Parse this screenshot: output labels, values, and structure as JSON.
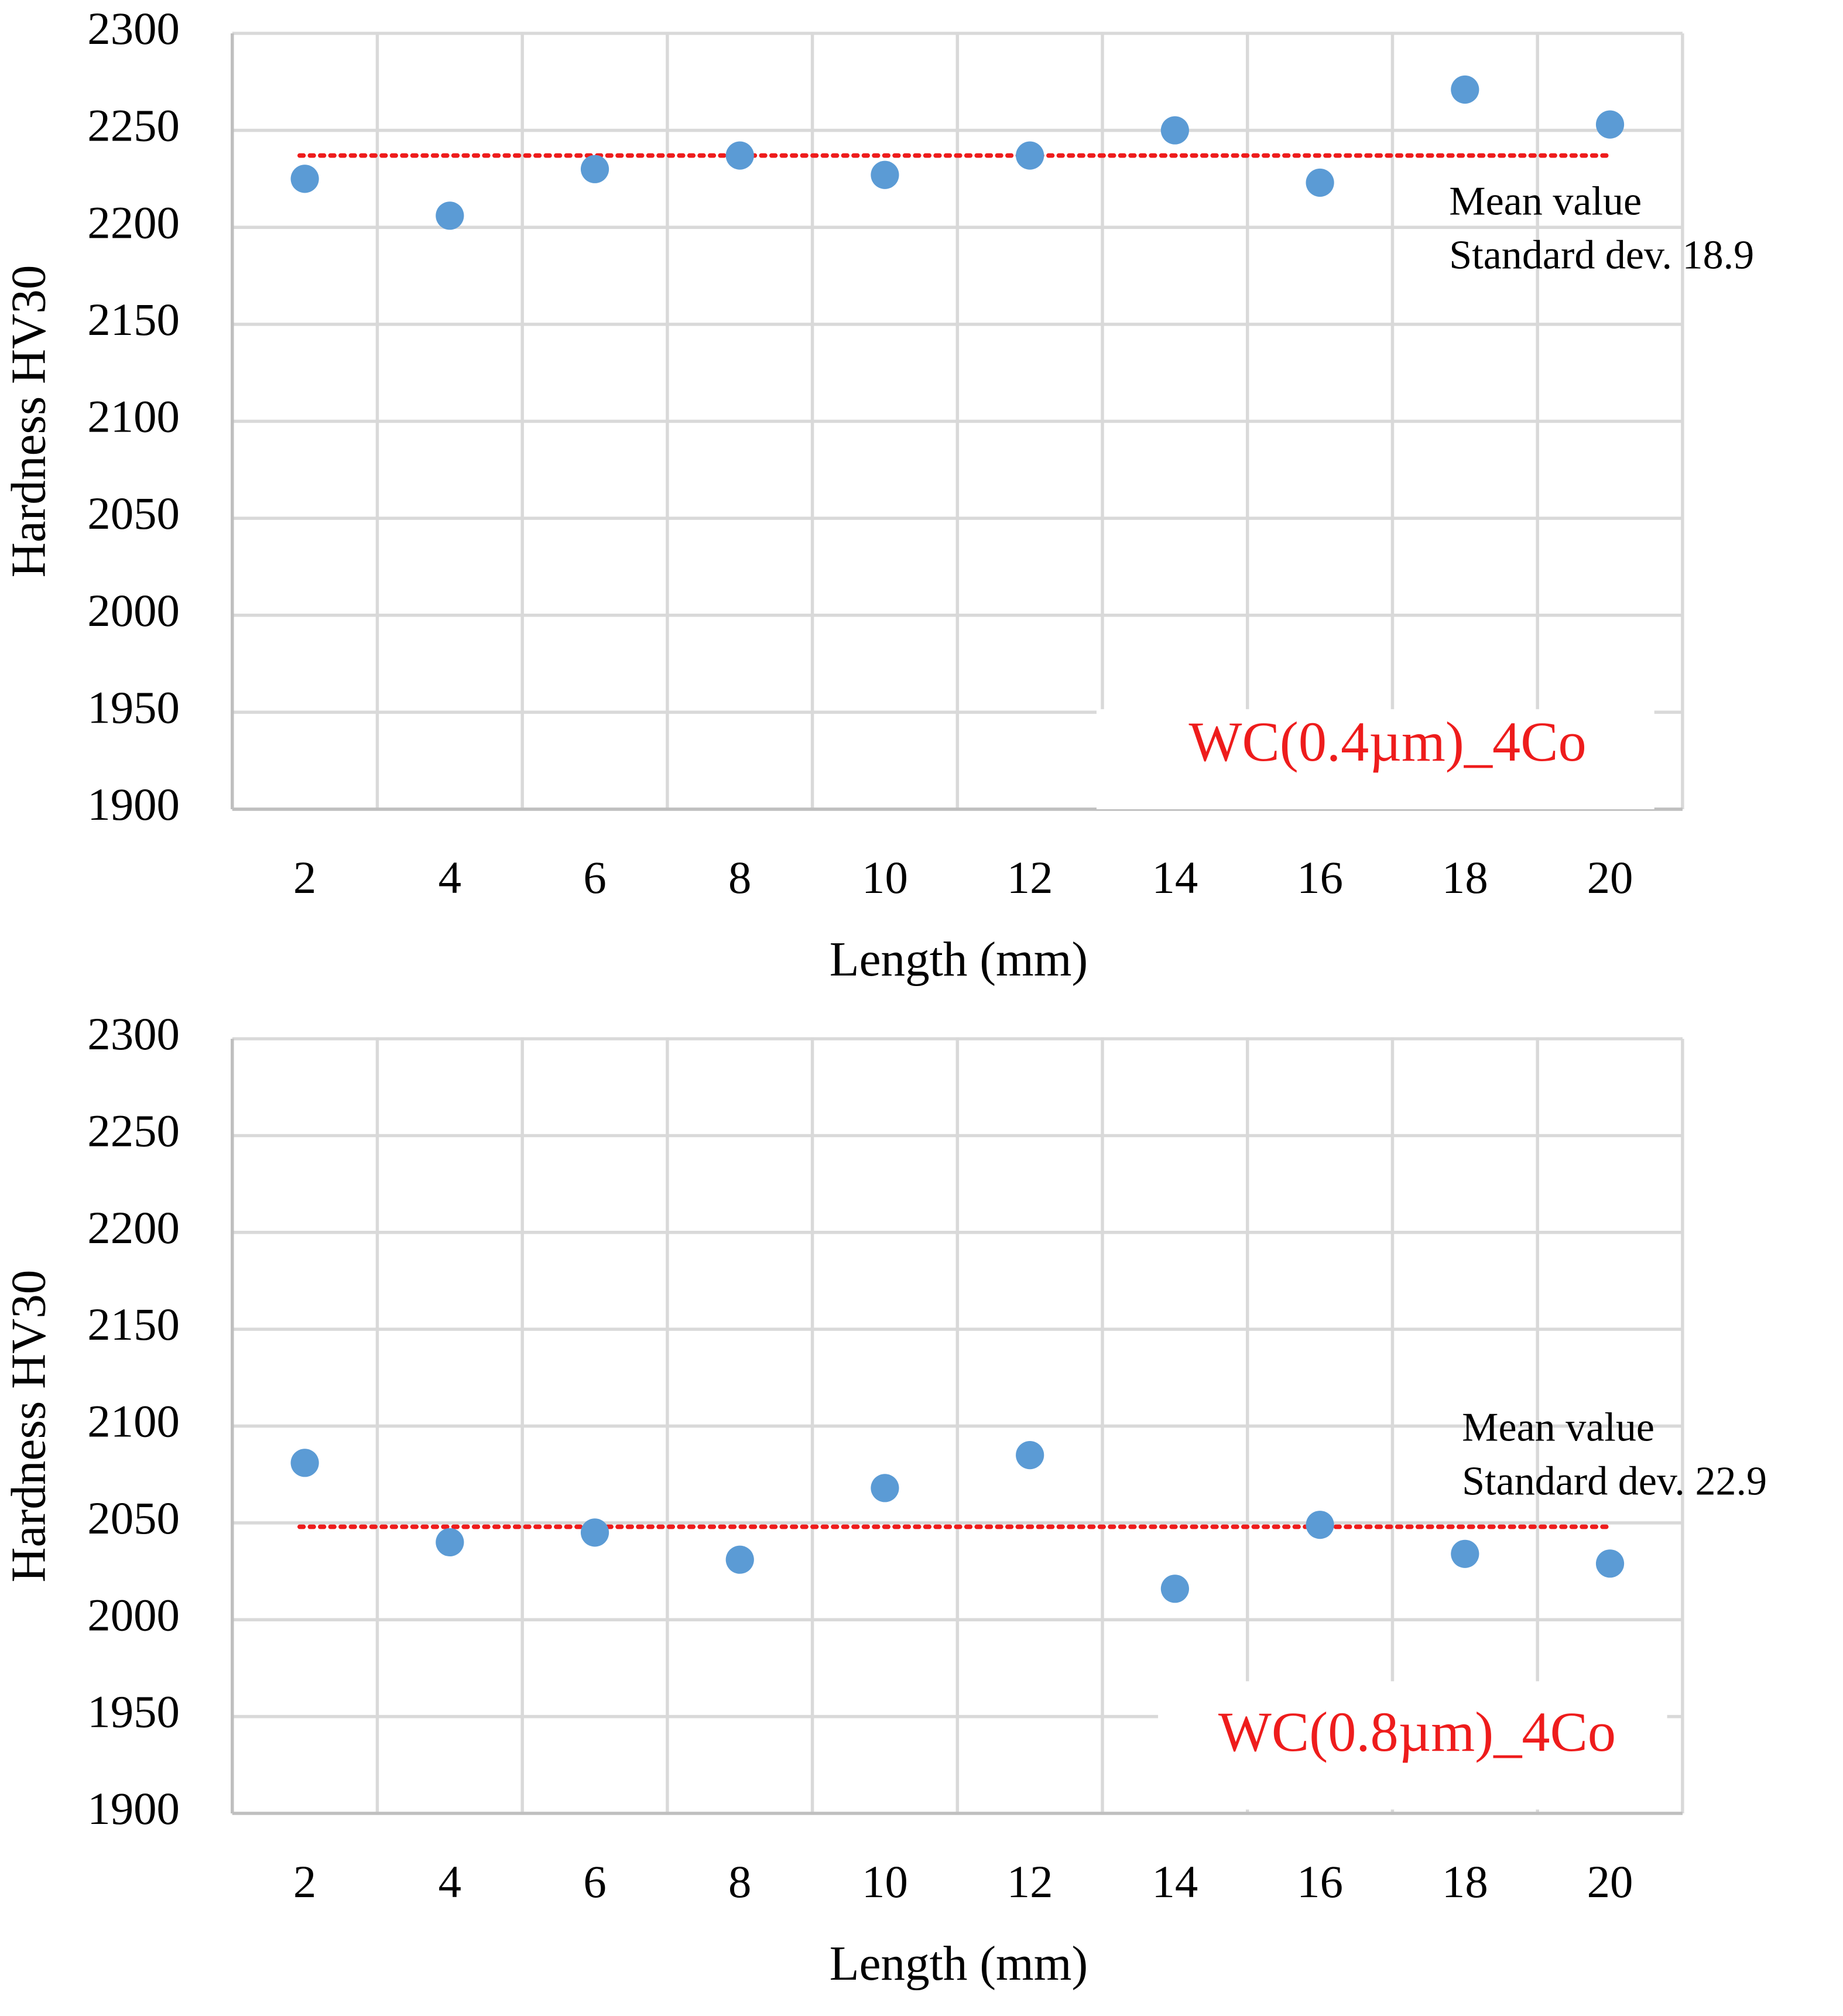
{
  "chart_data": [
    {
      "type": "scatter",
      "y_label": "Hardness HV30",
      "x_label": "Length (mm)",
      "categories": [
        2,
        4,
        6,
        8,
        10,
        12,
        14,
        16,
        18,
        20
      ],
      "series": [
        {
          "name": "WC(0.4µm)_4Co",
          "color": "#5b9bd5",
          "values": [
            2225,
            2206,
            2230,
            2237,
            2227,
            2237,
            2250,
            2223,
            2271,
            2253
          ]
        }
      ],
      "mean_line": {
        "value": 2237,
        "color": "#ee1c1c"
      },
      "annotations": [
        "Mean value",
        "Standard dev. 18.9"
      ],
      "ylim": [
        1900,
        2300
      ],
      "yticks": [
        1900,
        1950,
        2000,
        2050,
        2100,
        2150,
        2200,
        2250,
        2300
      ],
      "grid": true
    },
    {
      "type": "scatter",
      "y_label": "Hardness HV30",
      "x_label": "Length (mm)",
      "categories": [
        2,
        4,
        6,
        8,
        10,
        12,
        14,
        16,
        18,
        20
      ],
      "series": [
        {
          "name": "WC(0.8µm)_4Co",
          "color": "#5b9bd5",
          "values": [
            2081,
            2040,
            2045,
            2031,
            2068,
            2085,
            2016,
            2049,
            2034,
            2029
          ]
        }
      ],
      "mean_line": {
        "value": 2048,
        "color": "#ee1c1c"
      },
      "annotations": [
        "Mean value",
        "Standard dev. 22.9"
      ],
      "ylim": [
        1900,
        2300
      ],
      "yticks": [
        1900,
        1950,
        2000,
        2050,
        2100,
        2150,
        2200,
        2250,
        2300
      ],
      "grid": true
    }
  ]
}
